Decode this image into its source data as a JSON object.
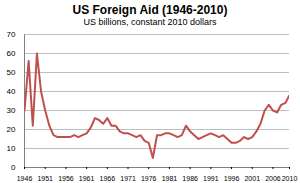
{
  "chart_data": {
    "type": "line",
    "title": "US Foreign Aid (1946-2010)",
    "subtitle": "US billions, constant 2010 dollars",
    "x": [
      1946,
      1947,
      1948,
      1949,
      1950,
      1951,
      1952,
      1953,
      1954,
      1955,
      1956,
      1957,
      1958,
      1959,
      1960,
      1961,
      1962,
      1963,
      1964,
      1965,
      1966,
      1967,
      1968,
      1969,
      1970,
      1971,
      1972,
      1973,
      1974,
      1975,
      1976,
      1977,
      1978,
      1979,
      1980,
      1981,
      1982,
      1983,
      1984,
      1985,
      1986,
      1987,
      1988,
      1989,
      1990,
      1991,
      1992,
      1993,
      1994,
      1995,
      1996,
      1997,
      1998,
      1999,
      2000,
      2001,
      2002,
      2003,
      2004,
      2005,
      2006,
      2007,
      2008,
      2009,
      2010
    ],
    "values": [
      30,
      56,
      22,
      60,
      40,
      30,
      22,
      17,
      16,
      16,
      16,
      16,
      17,
      16,
      17,
      18,
      21,
      26,
      25,
      23,
      26,
      22,
      22,
      19,
      18,
      18,
      17,
      16,
      17,
      14,
      13,
      5,
      17,
      17,
      18,
      18,
      17,
      16,
      17,
      22,
      19,
      17,
      15,
      16,
      17,
      18,
      17,
      16,
      17,
      15,
      13,
      13,
      14,
      16,
      15,
      16,
      19,
      23,
      30,
      33,
      30,
      29,
      33,
      34,
      38
    ],
    "color": "#c0504d",
    "xlim": [
      1946,
      2010
    ],
    "xticks": [
      1946,
      1951,
      1956,
      1961,
      1966,
      1971,
      1976,
      1981,
      1986,
      1991,
      1996,
      2001,
      2006,
      2010
    ],
    "ylim": [
      0,
      70
    ],
    "yticks": [
      0,
      10,
      20,
      30,
      40,
      50,
      60,
      70
    ],
    "grid": true
  }
}
